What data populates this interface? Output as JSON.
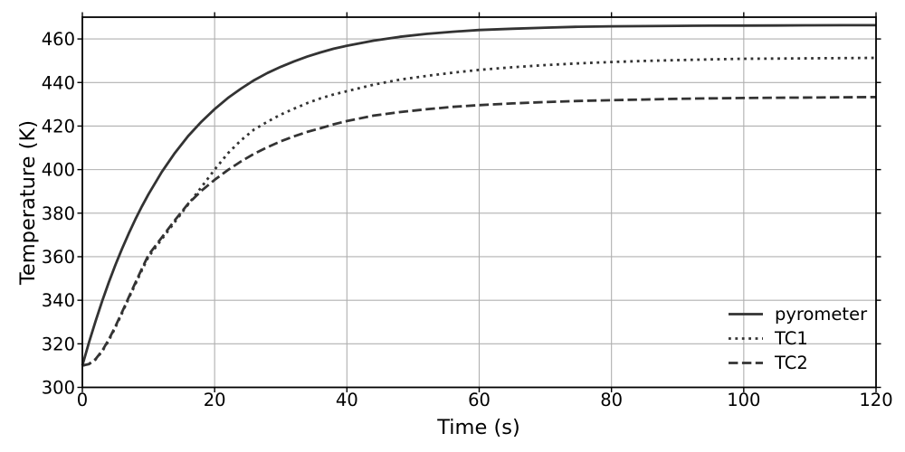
{
  "chart_data": {
    "type": "line",
    "title": "",
    "xlabel": "Time (s)",
    "ylabel": "Temperature (K)",
    "xlim": [
      0,
      120
    ],
    "ylim": [
      300,
      470
    ],
    "xticks": [
      0,
      20,
      40,
      60,
      80,
      100,
      120
    ],
    "yticks": [
      300,
      320,
      340,
      360,
      380,
      400,
      420,
      440,
      460
    ],
    "grid": true,
    "legend_position": "lower right",
    "x": [
      0,
      1,
      2,
      3,
      4,
      5,
      6,
      7,
      8,
      9,
      10,
      12,
      14,
      16,
      18,
      20,
      22,
      24,
      26,
      28,
      30,
      32,
      34,
      36,
      38,
      40,
      44,
      48,
      52,
      56,
      60,
      65,
      70,
      75,
      80,
      85,
      90,
      95,
      100,
      105,
      110,
      115,
      120
    ],
    "series": [
      {
        "name": "pyrometer",
        "style": "solid",
        "start_value": 310,
        "end_value": 466.3,
        "y": [
          310,
          320.6,
          330.4,
          339.6,
          348.2,
          356.2,
          363.6,
          370.6,
          377.1,
          383.1,
          388.7,
          398.9,
          407.7,
          415.4,
          422,
          427.8,
          432.9,
          437.2,
          441.1,
          444.4,
          447.2,
          449.7,
          451.9,
          453.8,
          455.5,
          456.9,
          459.2,
          461,
          462.3,
          463.3,
          464.1,
          464.7,
          465.2,
          465.6,
          465.8,
          465.9,
          466,
          466.1,
          466.15,
          466.2,
          466.25,
          466.3,
          466.3
        ]
      },
      {
        "name": "TC1",
        "style": "dotted",
        "start_value": 310,
        "end_value": 451.3,
        "y": [
          310,
          310.7,
          312.8,
          316.5,
          321.5,
          327.5,
          334,
          340.8,
          347.3,
          353.8,
          360,
          368,
          376,
          384,
          392,
          400,
          407.5,
          413.5,
          418.5,
          422,
          425.3,
          428,
          430.5,
          432.7,
          434.5,
          436,
          439,
          441.3,
          443,
          444.5,
          445.8,
          447,
          448,
          448.8,
          449.4,
          449.9,
          450.3,
          450.6,
          450.9,
          451,
          451.1,
          451.2,
          451.3
        ]
      },
      {
        "name": "TC2",
        "style": "dashed",
        "start_value": 310,
        "end_value": 433.3,
        "y": [
          310,
          310.7,
          313,
          316.8,
          322,
          328,
          334.5,
          341.3,
          348,
          354.5,
          360.8,
          368.8,
          376.8,
          384.3,
          390.3,
          395.3,
          399.8,
          403.8,
          407.3,
          410.3,
          413,
          415.3,
          417.3,
          419,
          420.8,
          422.3,
          424.8,
          426.4,
          427.7,
          428.8,
          429.6,
          430.4,
          431,
          431.5,
          431.9,
          432.2,
          432.5,
          432.7,
          432.9,
          433,
          433.1,
          433.2,
          433.3
        ]
      }
    ],
    "colors": {
      "line": "#333333",
      "grid": "#b0b0b0",
      "axis": "#000000",
      "background": "#ffffff",
      "text": "#000000"
    }
  }
}
